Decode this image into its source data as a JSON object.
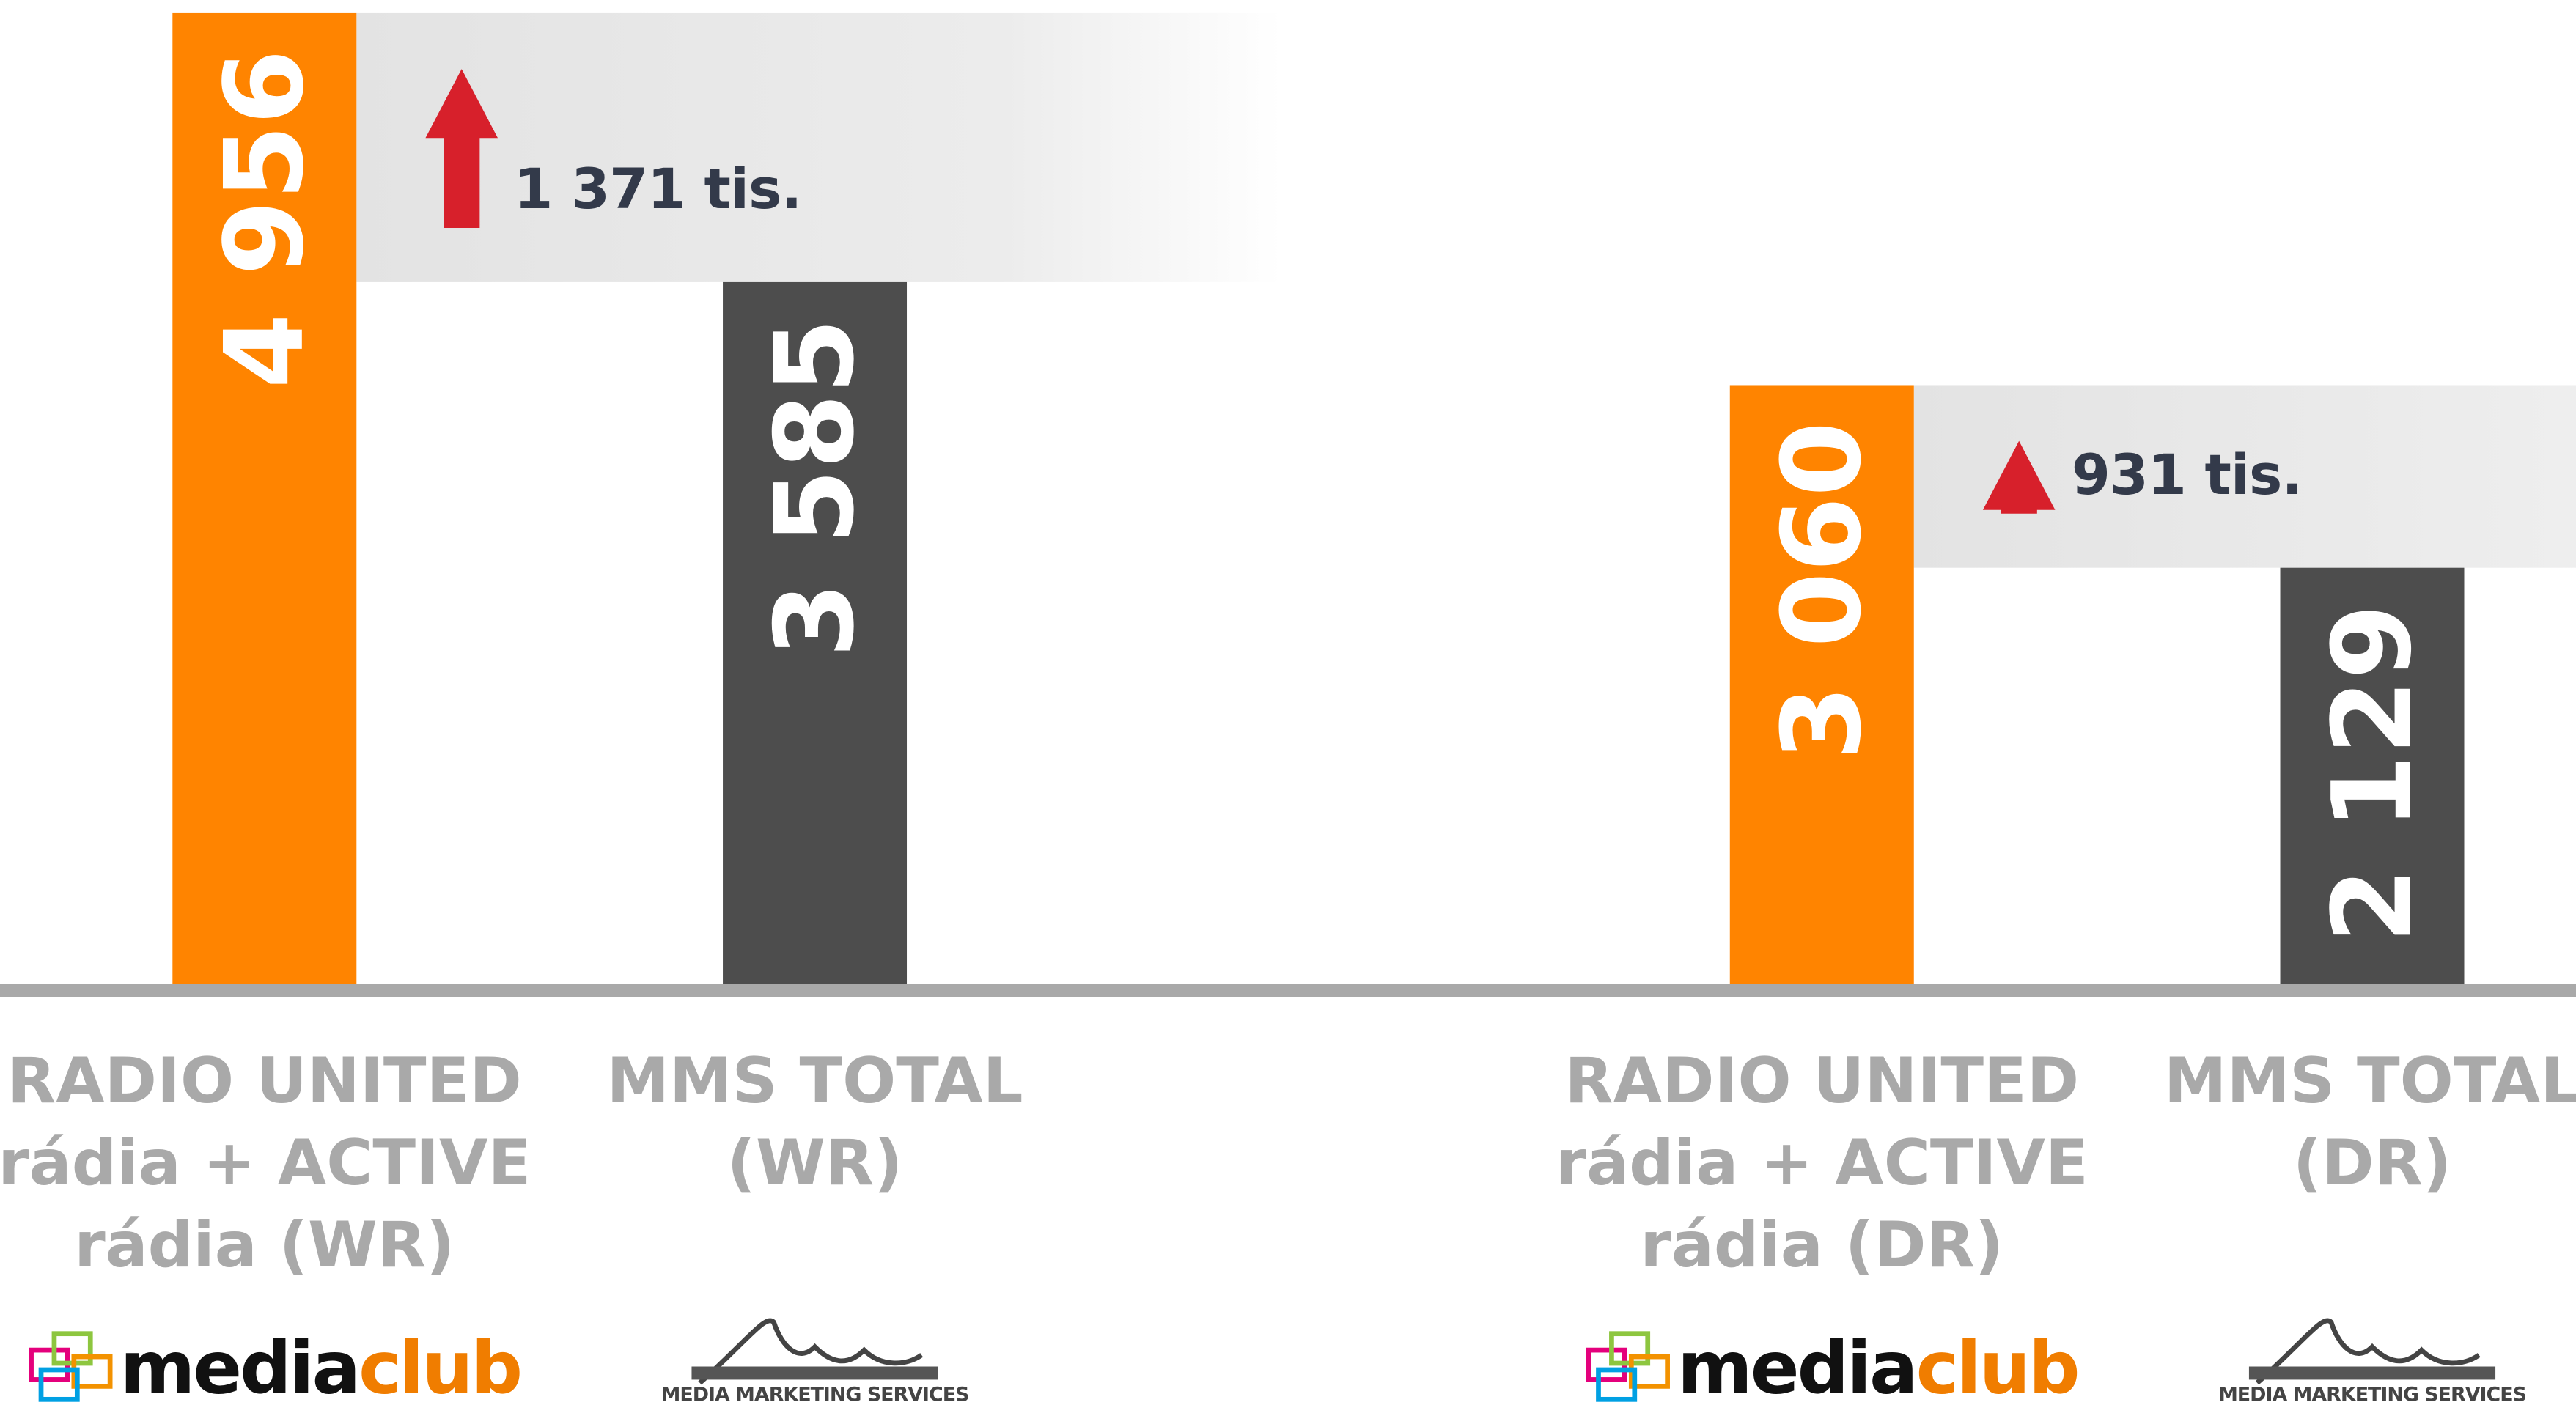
{
  "chart_data": {
    "type": "bar",
    "categories": [
      "RADIO UNITED rádia + ACTIVE rádia (WR)",
      "MMS TOTAL (WR)",
      "RADIO UNITED rádia + ACTIVE rádia (DR)",
      "MMS TOTAL (DR)"
    ],
    "values": [
      4956,
      3585,
      3060,
      2129
    ],
    "value_labels": [
      "4 956",
      "3 585",
      "3 060",
      "2 129"
    ],
    "colors": [
      "#ff8400",
      "#4d4d4d",
      "#ff8400",
      "#4d4d4d"
    ],
    "annotations": [
      "1 371 tis.",
      "931 tis."
    ],
    "logos": [
      [
        "media",
        "club"
      ],
      "MEDIA MARKETING SERVICES",
      [
        "media",
        "club"
      ],
      "MEDIA MARKETING SERVICES"
    ]
  }
}
